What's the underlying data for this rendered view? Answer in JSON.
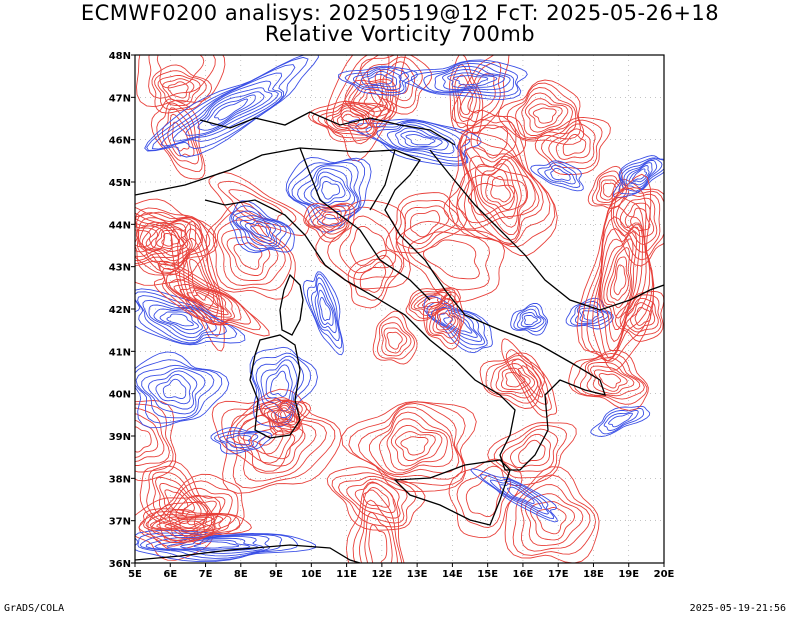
{
  "header": {
    "title_line1": "ECMWF0200 analisys: 20250519@12 FcT: 2025-05-26+18",
    "title_line2": "Relative Vorticity 700mb"
  },
  "axes": {
    "lat_labels": [
      "48N",
      "47N",
      "46N",
      "45N",
      "44N",
      "43N",
      "42N",
      "41N",
      "40N",
      "39N",
      "38N",
      "37N",
      "36N"
    ],
    "lon_labels": [
      "5E",
      "6E",
      "7E",
      "8E",
      "9E",
      "10E",
      "11E",
      "12E",
      "13E",
      "14E",
      "15E",
      "16E",
      "17E",
      "18E",
      "19E",
      "20E"
    ]
  },
  "colors": {
    "positive_contour": "#e8403a",
    "negative_contour": "#3a4fe6",
    "coastline": "#000000"
  },
  "footer": {
    "left": "GrADS/COLA",
    "right": "2025-05-19-21:56"
  }
}
